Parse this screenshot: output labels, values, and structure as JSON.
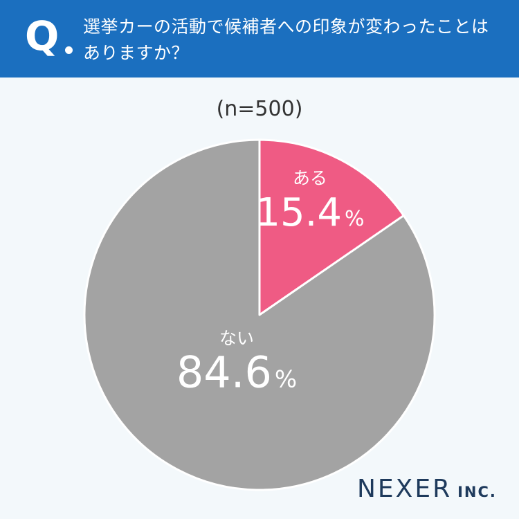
{
  "header": {
    "q_mark": "Q",
    "question": "選挙カーの活動で候補者への印象が変わったことはありますか？"
  },
  "sample_size": "(n=500)",
  "chart_data": {
    "type": "pie",
    "start": "12 o'clock",
    "direction": "clockwise",
    "slices": [
      {
        "label": "ある",
        "value": 15.4,
        "value_text": "15.4",
        "unit": "%",
        "color": "#ef5b84"
      },
      {
        "label": "ない",
        "value": 84.6,
        "value_text": "84.6",
        "unit": "%",
        "color": "#a3a3a3"
      }
    ],
    "slice_border_color": "#ffffff"
  },
  "branding": {
    "name": "NEXER",
    "suffix": "INC.",
    "color": "#1e3a5c"
  },
  "colors": {
    "header_background": "#1b6fbf",
    "page_background": "#f3f8fb"
  }
}
